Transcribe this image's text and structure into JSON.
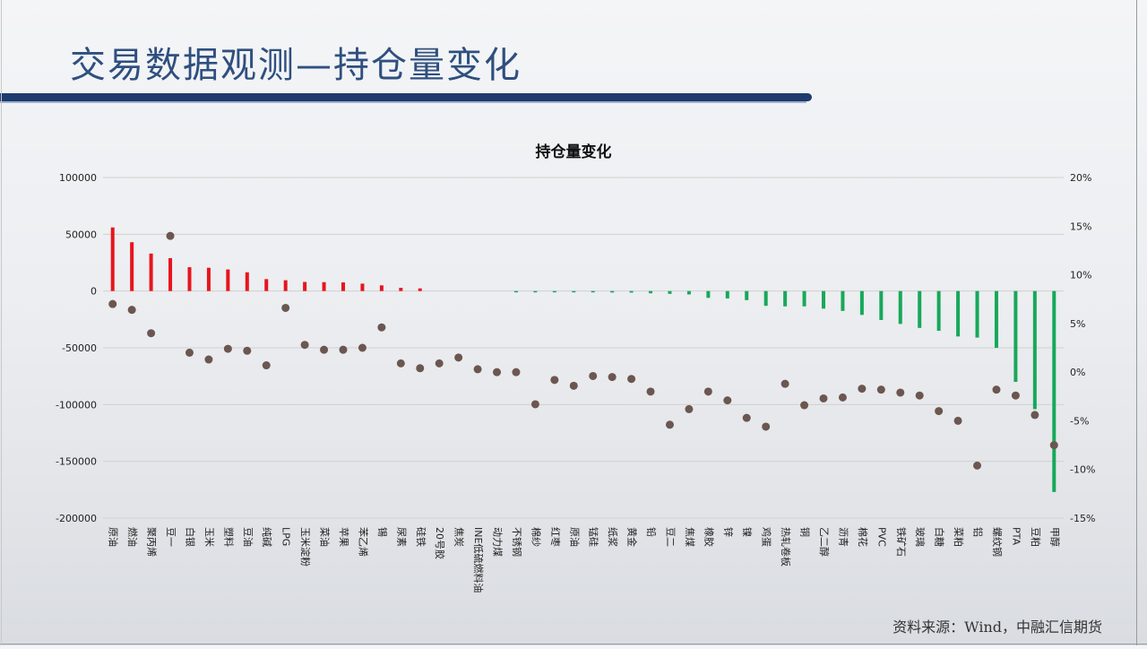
{
  "page": {
    "title": "交易数据观测—持仓量变化",
    "source": "资料来源：Wind，中融汇信期货"
  },
  "colors": {
    "positive": "#e8141c",
    "negative": "#17a85a",
    "marker": "#6b5650",
    "title_blue": "#2f4f7f"
  },
  "chart_data": {
    "type": "bar",
    "title": "持仓量变化",
    "categories": [
      "原油",
      "燃油",
      "聚丙烯",
      "豆一",
      "白银",
      "玉米",
      "塑料",
      "豆油",
      "纯碱",
      "LPG",
      "玉米淀粉",
      "菜油",
      "苹果",
      "苯乙烯",
      "锡",
      "尿素",
      "硅铁",
      "20号胶",
      "焦炭",
      "INE低硫燃料油",
      "动力煤",
      "不锈钢",
      "棉纱",
      "红枣",
      "原油",
      "锰硅",
      "纸浆",
      "黄金",
      "铅",
      "豆二",
      "焦煤",
      "橡胶",
      "锌",
      "镍",
      "鸡蛋",
      "热轧卷板",
      "铜",
      "乙二醇",
      "沥青",
      "棉花",
      "PVC",
      "铁矿石",
      "玻璃",
      "白糖",
      "菜粕",
      "铝",
      "螺纹钢",
      "PTA",
      "豆粕",
      "甲醇"
    ],
    "series": [
      {
        "name": "",
        "axis": "left",
        "values": [
          56000,
          43000,
          33000,
          29000,
          21000,
          20500,
          19000,
          16500,
          10500,
          9500,
          8000,
          7800,
          7600,
          6500,
          5000,
          2800,
          2300,
          0,
          0,
          0,
          0,
          -800,
          -900,
          -1000,
          -1100,
          -1200,
          -1300,
          -1400,
          -2000,
          -2500,
          -3000,
          -6000,
          -6500,
          -8000,
          -13000,
          -13500,
          -13500,
          -15500,
          -17500,
          -21000,
          -25500,
          -29000,
          -32500,
          -35000,
          -40000,
          -41000,
          -50000,
          -80000,
          -104000,
          -177000
        ]
      },
      {
        "name": "",
        "axis": "right",
        "type": "scatter",
        "values": [
          7,
          6.4,
          4,
          14,
          2,
          1.3,
          2.4,
          2.2,
          0.7,
          6.6,
          2.8,
          2.3,
          2.3,
          2.5,
          4.6,
          0.9,
          0.4,
          0.9,
          1.5,
          0.3,
          0,
          0,
          -3.3,
          -0.8,
          -1.4,
          -0.4,
          -0.5,
          -0.7,
          -2,
          -5.4,
          -3.8,
          -2,
          -2.9,
          -4.7,
          -5.6,
          -1.2,
          -3.4,
          -2.7,
          -2.6,
          -1.7,
          -1.8,
          -2.1,
          -2.4,
          -4,
          -5,
          -9.6,
          -1.8,
          -2.4,
          -4.4,
          -7.5
        ]
      }
    ],
    "yleft": {
      "lim": [
        -200000,
        100000
      ],
      "ticks": [
        "100000",
        "50000",
        "0",
        "-50000",
        "-100000",
        "-150000",
        "-200000"
      ]
    },
    "yright": {
      "lim": [
        -15,
        20
      ],
      "ticks": [
        "20%",
        "15%",
        "10%",
        "5%",
        "0%",
        "-5%",
        "-10%",
        "-15%"
      ]
    },
    "grid": true,
    "legend": "none"
  }
}
